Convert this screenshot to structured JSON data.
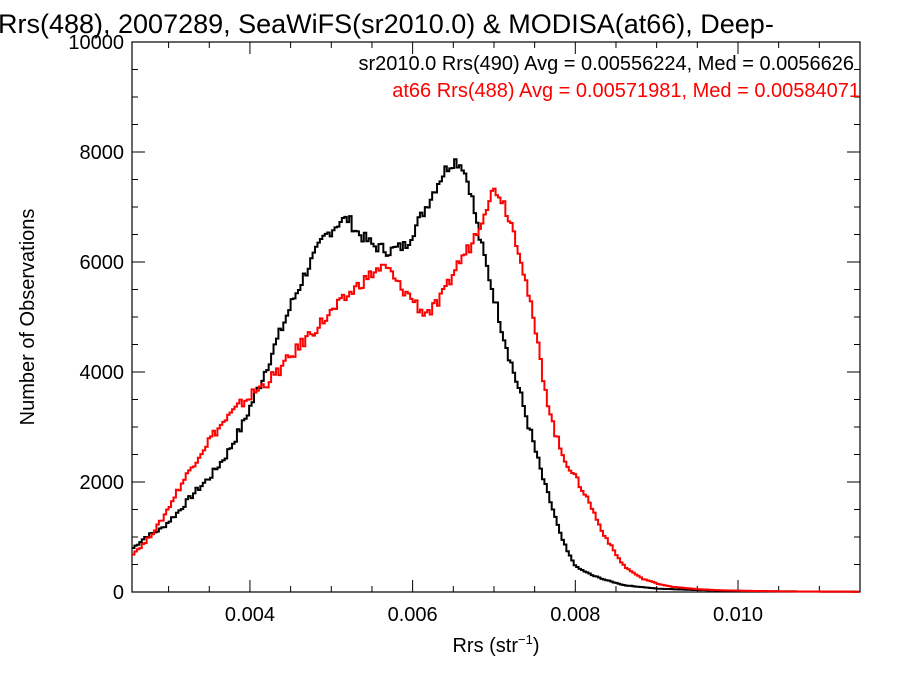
{
  "chart_data": {
    "type": "line",
    "title": "Rrs(488), 2007289, SeaWiFS(sr2010.0) & MODISA(at66), Deep-",
    "xlabel": "Rrs (str",
    "xlabel_sup": "−1",
    "xlabel_close": ")",
    "ylabel": "Number of Observations",
    "xlim": [
      0.00255,
      0.0115
    ],
    "ylim": [
      0,
      10000
    ],
    "x_ticks": [
      {
        "value": 0.004,
        "label": "0.004"
      },
      {
        "value": 0.006,
        "label": "0.006"
      },
      {
        "value": 0.008,
        "label": "0.008"
      },
      {
        "value": 0.01,
        "label": "0.010"
      }
    ],
    "y_ticks": [
      {
        "value": 0,
        "label": "0"
      },
      {
        "value": 2000,
        "label": "2000"
      },
      {
        "value": 4000,
        "label": "4000"
      },
      {
        "value": 6000,
        "label": "6000"
      },
      {
        "value": 8000,
        "label": "8000"
      },
      {
        "value": 10000,
        "label": "10000"
      }
    ],
    "annotations": [
      {
        "text": "sr2010.0 Rrs(490) Avg = 0.00556224, Med = 0.0056626",
        "color": "#000000"
      },
      {
        "text": "at66 Rrs(488) Avg = 0.00571981, Med = 0.00584071",
        "color": "#ff0000"
      }
    ],
    "series": [
      {
        "color": "#000000",
        "x": [
          0.00255,
          0.0027,
          0.0029,
          0.0031,
          0.0033,
          0.0035,
          0.0037,
          0.0039,
          0.0041,
          0.0043,
          0.0045,
          0.0047,
          0.0049,
          0.0051,
          0.0052,
          0.0053,
          0.0055,
          0.0057,
          0.0059,
          0.0061,
          0.0063,
          0.0064,
          0.0065,
          0.0066,
          0.0067,
          0.0068,
          0.0069,
          0.007,
          0.0071,
          0.0072,
          0.0073,
          0.0074,
          0.0075,
          0.0076,
          0.0077,
          0.0078,
          0.0079,
          0.008,
          0.0082,
          0.0084,
          0.0086,
          0.0088,
          0.009,
          0.0092,
          0.0095,
          0.0098,
          0.0101,
          0.0105,
          0.011,
          0.0115
        ],
        "values": [
          800,
          1000,
          1150,
          1450,
          1800,
          2100,
          2500,
          3050,
          3750,
          4500,
          5250,
          5900,
          6450,
          6750,
          6780,
          6550,
          6300,
          6200,
          6300,
          6850,
          7450,
          7700,
          7850,
          7750,
          7300,
          6500,
          5900,
          5300,
          4700,
          4150,
          3650,
          3100,
          2550,
          2000,
          1550,
          1050,
          700,
          450,
          300,
          200,
          120,
          90,
          60,
          50,
          35,
          25,
          20,
          12,
          8,
          5
        ]
      },
      {
        "color": "#ff0000",
        "x": [
          0.00255,
          0.0027,
          0.0029,
          0.0031,
          0.0033,
          0.0035,
          0.0037,
          0.0039,
          0.0041,
          0.0043,
          0.0045,
          0.0047,
          0.0049,
          0.0051,
          0.0053,
          0.0055,
          0.0056,
          0.0057,
          0.0058,
          0.0059,
          0.006,
          0.0061,
          0.0062,
          0.0063,
          0.0064,
          0.0065,
          0.0066,
          0.0067,
          0.0068,
          0.0069,
          0.007,
          0.0071,
          0.0072,
          0.0073,
          0.0074,
          0.0075,
          0.0076,
          0.0077,
          0.0078,
          0.0079,
          0.008,
          0.0081,
          0.0082,
          0.0083,
          0.0084,
          0.0085,
          0.0086,
          0.0088,
          0.009,
          0.0092,
          0.0095,
          0.0098,
          0.0101,
          0.0105,
          0.011,
          0.0115
        ],
        "values": [
          700,
          900,
          1300,
          1850,
          2350,
          2800,
          3150,
          3450,
          3700,
          3950,
          4300,
          4650,
          4950,
          5250,
          5550,
          5800,
          5900,
          5850,
          5600,
          5450,
          5300,
          5100,
          5100,
          5250,
          5500,
          5850,
          6100,
          6300,
          6650,
          7050,
          7350,
          7100,
          6700,
          6200,
          5500,
          4700,
          3850,
          3100,
          2600,
          2300,
          2050,
          1800,
          1500,
          1150,
          900,
          650,
          450,
          250,
          150,
          90,
          50,
          30,
          20,
          12,
          8,
          5
        ]
      }
    ]
  }
}
